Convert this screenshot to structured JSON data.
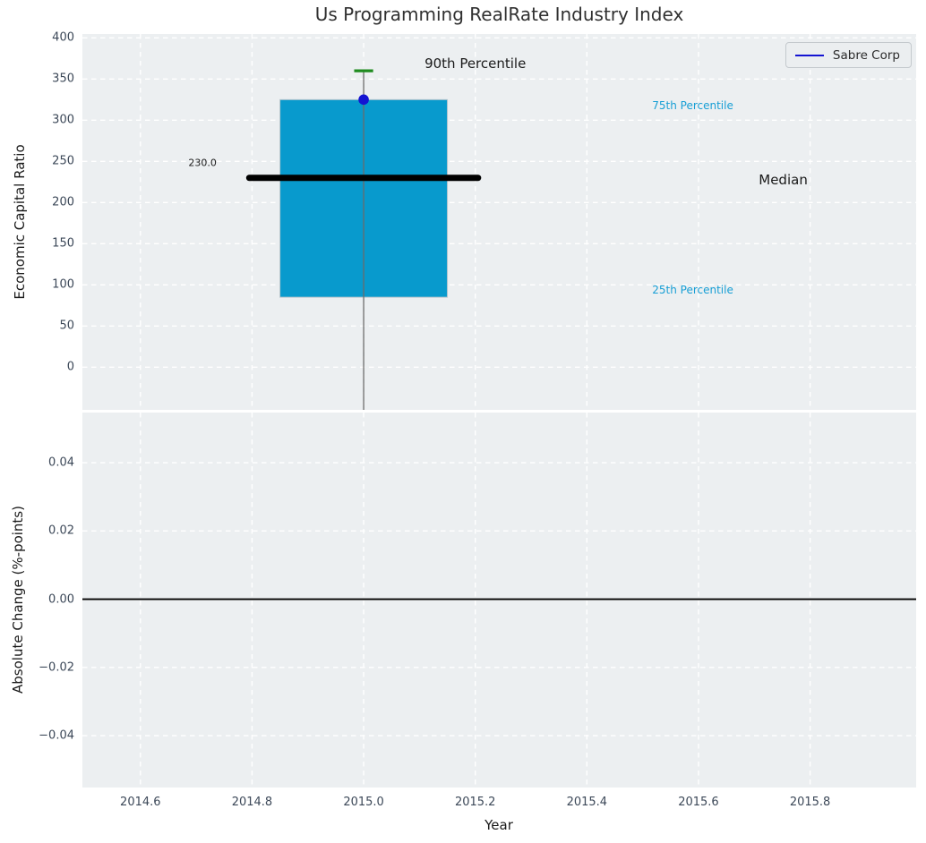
{
  "title": "Us Programming RealRate Industry Index",
  "legend": {
    "label": "Sabre Corp",
    "line_color": "#1414d2"
  },
  "colors": {
    "figure_bg": "#ffffff",
    "axes_bg": "#eceff1",
    "grid": "#ffffff",
    "tick_label": "#3c4858",
    "title": "#303030",
    "box_fill": "#089acd",
    "box_edge": "#b9c6cd",
    "median_line": "#000000",
    "p90_marker": "#1f8b1f",
    "company_marker": "#1414d2",
    "stem_line": "#6b6b6b",
    "zero_line": "#000000",
    "percentile_label": "#189fd5",
    "annotation_dark": "#1a1a1a"
  },
  "chart_data": [
    {
      "panel": "top",
      "type": "box",
      "title": "Us Programming RealRate Industry Index",
      "ylabel": "Economic Capital Ratio",
      "xlim": [
        2014.496,
        2015.99
      ],
      "ylim": [
        -51.8,
        404.7
      ],
      "grid": true,
      "yticks": [
        0,
        50,
        100,
        150,
        200,
        250,
        300,
        350,
        400
      ],
      "ytick_labels": [
        "0",
        "50",
        "100",
        "150",
        "200",
        "250",
        "300",
        "350",
        "400"
      ],
      "xticks": [
        2014.6,
        2014.8,
        2015.0,
        2015.2,
        2015.4,
        2015.6,
        2015.8
      ],
      "show_xtick_labels": false,
      "box": {
        "x": 2015.0,
        "q25": 85,
        "median": 230.0,
        "q75": 325,
        "p90": 360,
        "box_half_width": 0.15,
        "median_half_width": 0.205,
        "p90_half_width": 0.017
      },
      "company_point": {
        "name": "Sabre Corp",
        "x": 2015.0,
        "y": 325
      },
      "annotations": [
        {
          "id": "p90-label",
          "text": "90th Percentile",
          "x": 2015.2,
          "y": 369,
          "color": "#1a1a1a",
          "size": 15,
          "align": "center"
        },
        {
          "id": "p75-label",
          "text": "75th Percentile",
          "x": 2015.517,
          "y": 318,
          "color": "#189fd5",
          "size": 12,
          "align": "left"
        },
        {
          "id": "p25-label",
          "text": "25th Percentile",
          "x": 2015.517,
          "y": 94,
          "color": "#189fd5",
          "size": 12,
          "align": "left"
        },
        {
          "id": "median-label",
          "text": "Median",
          "x": 2015.708,
          "y": 228,
          "color": "#1a1a1a",
          "size": 15,
          "align": "left"
        },
        {
          "id": "median-value",
          "text": "230.0",
          "x": 2014.686,
          "y": 248,
          "color": "#1a1a1a",
          "size": 11,
          "align": "left"
        }
      ]
    },
    {
      "panel": "bottom",
      "type": "line",
      "ylabel": "Absolute Change (%-points)",
      "xlabel": "Year",
      "xlim": [
        2014.496,
        2015.99
      ],
      "ylim": [
        -0.0552,
        0.0547
      ],
      "grid": true,
      "yticks": [
        0.04,
        0.02,
        0.0,
        -0.02,
        -0.04
      ],
      "ytick_labels": [
        "0.04",
        "0.02",
        "0.00",
        "−0.02",
        "−0.04"
      ],
      "xticks": [
        2014.6,
        2014.8,
        2015.0,
        2015.2,
        2015.4,
        2015.6,
        2015.8
      ],
      "xtick_labels": [
        "2014.6",
        "2014.8",
        "2015.0",
        "2015.2",
        "2015.4",
        "2015.6",
        "2015.8"
      ],
      "show_xtick_labels": true,
      "zero_line_y": 0.0,
      "series": []
    }
  ]
}
